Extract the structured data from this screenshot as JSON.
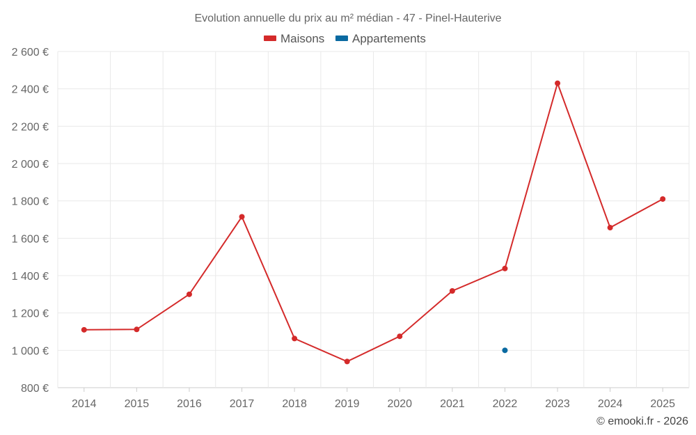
{
  "chart_data": {
    "type": "line",
    "title": "Evolution annuelle du prix au m² médian - 47 - Pinel-Hauterive",
    "categories": [
      "2014",
      "2015",
      "2016",
      "2017",
      "2018",
      "2019",
      "2020",
      "2021",
      "2022",
      "2023",
      "2024",
      "2025"
    ],
    "series": [
      {
        "name": "Maisons",
        "color": "#d42a2a",
        "values": [
          1110,
          1112,
          1300,
          1715,
          1063,
          940,
          1075,
          1318,
          1438,
          2430,
          1657,
          1810
        ]
      },
      {
        "name": "Appartements",
        "color": "#0a6aa1",
        "values": [
          null,
          null,
          null,
          null,
          null,
          null,
          null,
          null,
          1000,
          null,
          null,
          null
        ]
      }
    ],
    "ylim": [
      800,
      2600
    ],
    "yticks": [
      800,
      1000,
      1200,
      1400,
      1600,
      1800,
      2000,
      2200,
      2400,
      2600
    ],
    "ytick_labels": [
      "800 €",
      "1 000 €",
      "1 200 €",
      "1 400 €",
      "1 600 €",
      "1 800 €",
      "2 000 €",
      "2 200 €",
      "2 400 €",
      "2 600 €"
    ],
    "xlabel": "",
    "ylabel": "",
    "grid": true,
    "legend": "top-center"
  },
  "credit": "© emooki.fr - 2026"
}
